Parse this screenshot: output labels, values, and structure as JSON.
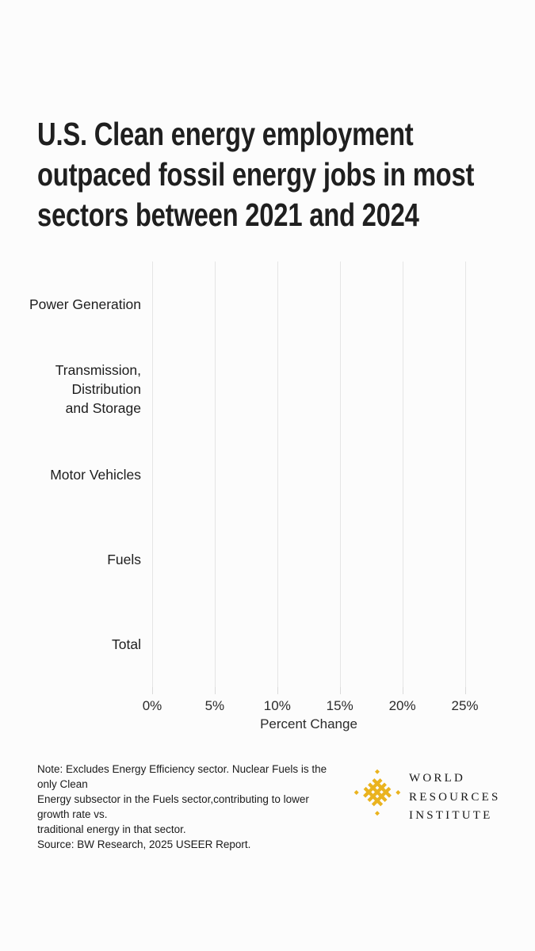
{
  "header": {
    "title_lines": [
      "U.S. Clean energy employment",
      "outpaced fossil energy jobs in most",
      "sectors between 2021 and 2024"
    ]
  },
  "chart_data": {
    "type": "bar",
    "orientation": "horizontal",
    "title": "U.S. Clean energy employment outpaced fossil energy jobs in most sectors between 2021 and 2024",
    "categories": [
      "Power Generation",
      "Transmission,\nDistribution\nand Storage",
      "Motor Vehicles",
      "Fuels",
      "Total"
    ],
    "series": [],
    "bars_visible": false,
    "xlabel": "Percent Change",
    "ylabel": "",
    "x_tick_labels": [
      "0%",
      "5%",
      "10%",
      "15%",
      "20%",
      "25%"
    ],
    "xlim": [
      0,
      25
    ],
    "grid": "vertical",
    "legend": "none"
  },
  "footer": {
    "note_lines": [
      "Note: Excludes Energy Efficiency sector. Nuclear Fuels is the only Clean",
      "Energy subsector in the Fuels sector,contributing to lower growth rate vs.",
      "traditional energy in that sector."
    ],
    "source_line": "Source: BW Research, 2025 USEER Report.",
    "brand": {
      "lines": [
        "WORLD",
        "RESOURCES",
        "INSTITUTE"
      ],
      "mark_color": "#EAB31E"
    }
  },
  "colors": {
    "background": "#fcfcfc",
    "gridline": "#e5e5e5",
    "title_text": "#1f1f1f",
    "axis_text": "#2b2b2b",
    "brand_gold": "#EAB31E"
  }
}
